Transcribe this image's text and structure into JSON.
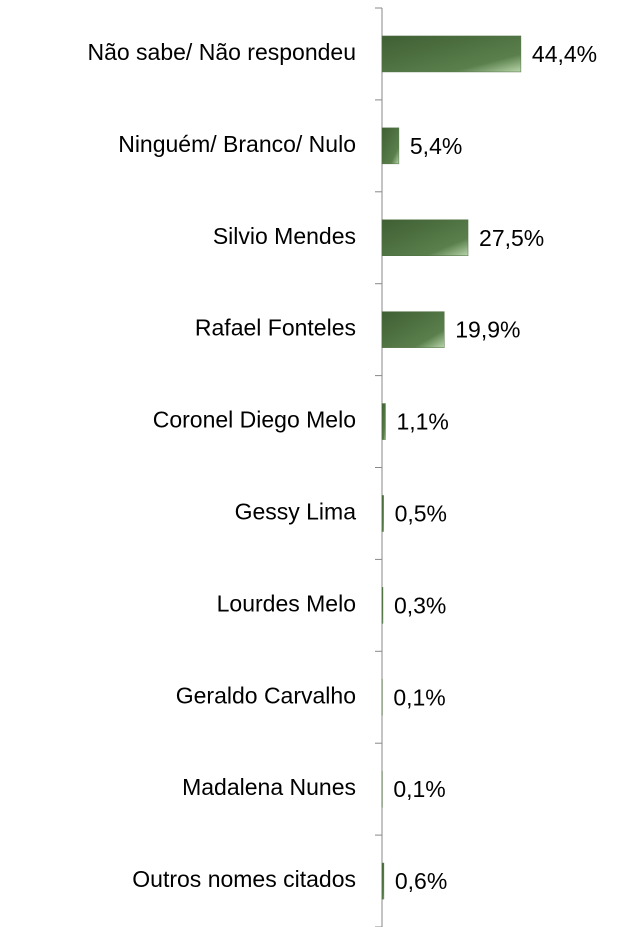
{
  "chart_data": {
    "type": "hbar",
    "categories": [
      "Não sabe/ Não respondeu",
      "Ninguém/ Branco/ Nulo",
      "Silvio Mendes",
      "Rafael Fonteles",
      "Coronel Diego Melo",
      "Gessy Lima",
      "Lourdes Melo",
      "Geraldo Carvalho",
      "Madalena Nunes",
      "Outros nomes citados"
    ],
    "values": [
      44.4,
      5.4,
      27.5,
      19.9,
      1.1,
      0.5,
      0.3,
      0.1,
      0.1,
      0.6
    ],
    "value_labels": [
      "44,4%",
      "5,4%",
      "27,5%",
      "19,9%",
      "1,1%",
      "0,5%",
      "0,3%",
      "0,1%",
      "0,1%",
      "0,6%"
    ],
    "color": "#4f7042",
    "xlim": [
      0,
      70
    ]
  }
}
